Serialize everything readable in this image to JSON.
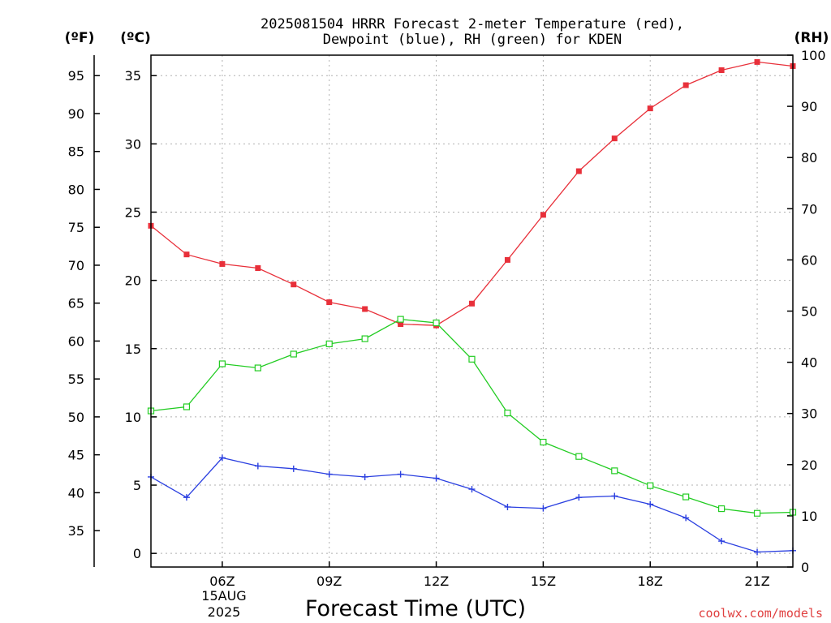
{
  "chart_data": {
    "type": "line",
    "title": "2025081504 HRRR Forecast 2-meter Temperature (red),",
    "subtitle": "Dewpoint (blue), RH (green) for KDEN",
    "xlabel": "Forecast Time (UTC)",
    "credit": "coolwx.com/models",
    "date_label": {
      "line1": "15AUG",
      "line2": "2025"
    },
    "axes": {
      "fahrenheit": {
        "unit": "(ºF)",
        "ticks": [
          35,
          40,
          45,
          50,
          55,
          60,
          65,
          70,
          75,
          80,
          85,
          90,
          95
        ]
      },
      "celsius": {
        "unit": "(ºC)",
        "ylim": [
          -1,
          36.5
        ],
        "ticks": [
          0,
          5,
          10,
          15,
          20,
          25,
          30,
          35
        ]
      },
      "rh": {
        "unit": "(RH)",
        "ylim": [
          0,
          100
        ],
        "ticks": [
          0,
          10,
          20,
          30,
          40,
          50,
          60,
          70,
          80,
          90,
          100
        ]
      }
    },
    "x_hours": [
      4,
      5,
      6,
      7,
      8,
      9,
      10,
      11,
      12,
      13,
      14,
      15,
      16,
      17,
      18,
      19,
      20,
      21,
      22
    ],
    "xlim": [
      4,
      22
    ],
    "x_ticks": [
      {
        "hour": 6,
        "label": "06Z"
      },
      {
        "hour": 9,
        "label": "09Z"
      },
      {
        "hour": 12,
        "label": "12Z"
      },
      {
        "hour": 15,
        "label": "15Z"
      },
      {
        "hour": 18,
        "label": "18Z"
      },
      {
        "hour": 21,
        "label": "21Z"
      }
    ],
    "series": [
      {
        "key": "temperature",
        "axis": "celsius",
        "color": "#e8303a",
        "marker": "filled-square",
        "values": [
          24.0,
          21.9,
          21.2,
          20.9,
          19.7,
          18.4,
          17.9,
          16.8,
          16.7,
          18.3,
          21.5,
          24.8,
          28.0,
          30.4,
          32.6,
          34.3,
          35.4,
          36.0,
          35.7
        ]
      },
      {
        "key": "dewpoint",
        "axis": "celsius",
        "color": "#2a3fe0",
        "marker": "plus",
        "values": [
          5.6,
          4.1,
          7.0,
          6.4,
          6.2,
          5.8,
          5.6,
          5.8,
          5.5,
          4.7,
          3.4,
          3.3,
          4.1,
          4.2,
          3.6,
          2.6,
          0.9,
          0.1,
          0.2
        ]
      },
      {
        "key": "rh",
        "axis": "rh",
        "color": "#22cc22",
        "marker": "open-square",
        "values": [
          30.5,
          31.3,
          39.7,
          38.9,
          41.6,
          43.6,
          44.6,
          48.4,
          47.7,
          40.6,
          30.1,
          24.4,
          21.6,
          18.8,
          15.9,
          13.7,
          11.4,
          10.5,
          10.7
        ]
      }
    ],
    "grid": true
  }
}
